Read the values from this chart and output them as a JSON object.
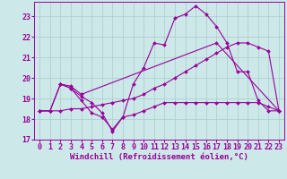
{
  "background_color": "#cce8e8",
  "grid_color": "#aacccc",
  "line_color": "#990099",
  "marker": "D",
  "marker_size": 2,
  "linewidth": 0.8,
  "xlim": [
    -0.5,
    23.5
  ],
  "ylim": [
    17,
    23.7
  ],
  "yticks": [
    17,
    18,
    19,
    20,
    21,
    22,
    23
  ],
  "xticks": [
    0,
    1,
    2,
    3,
    4,
    5,
    6,
    7,
    8,
    9,
    10,
    11,
    12,
    13,
    14,
    15,
    16,
    17,
    18,
    19,
    20,
    21,
    22,
    23
  ],
  "xlabel": "Windchill (Refroidissement éolien,°C)",
  "xlabel_fontsize": 6.5,
  "tick_fontsize": 6,
  "series": [
    {
      "x": [
        0,
        1,
        2,
        3,
        4,
        5,
        6,
        7,
        8,
        9,
        10,
        11,
        12,
        13,
        14,
        15,
        16,
        17,
        18,
        19,
        20,
        21,
        22,
        23
      ],
      "y": [
        18.4,
        18.4,
        19.7,
        19.5,
        18.9,
        18.3,
        18.1,
        17.5,
        18.1,
        18.2,
        18.4,
        18.6,
        18.8,
        18.8,
        18.8,
        18.8,
        18.8,
        18.8,
        18.8,
        18.8,
        18.8,
        18.8,
        18.6,
        18.4
      ]
    },
    {
      "x": [
        0,
        1,
        2,
        3,
        4,
        5,
        6,
        7,
        8,
        9,
        10,
        11,
        12,
        13,
        14,
        15,
        16,
        17,
        18,
        19,
        20,
        21,
        22,
        23
      ],
      "y": [
        18.4,
        18.4,
        19.7,
        19.5,
        19.1,
        18.8,
        18.3,
        17.4,
        18.1,
        19.7,
        20.5,
        21.7,
        21.6,
        22.9,
        23.1,
        23.5,
        23.1,
        22.5,
        21.7,
        20.3,
        20.3,
        18.9,
        18.4,
        18.4
      ]
    },
    {
      "x": [
        2,
        3,
        4,
        17,
        23
      ],
      "y": [
        19.7,
        19.6,
        19.2,
        21.7,
        18.4
      ]
    },
    {
      "x": [
        0,
        1,
        2,
        3,
        4,
        5,
        6,
        7,
        8,
        9,
        10,
        11,
        12,
        13,
        14,
        15,
        16,
        17,
        18,
        19,
        20,
        21,
        22,
        23
      ],
      "y": [
        18.4,
        18.4,
        18.4,
        18.5,
        18.5,
        18.6,
        18.7,
        18.8,
        18.9,
        19.0,
        19.2,
        19.5,
        19.7,
        20.0,
        20.3,
        20.6,
        20.9,
        21.2,
        21.5,
        21.7,
        21.7,
        21.5,
        21.3,
        18.4
      ]
    }
  ]
}
